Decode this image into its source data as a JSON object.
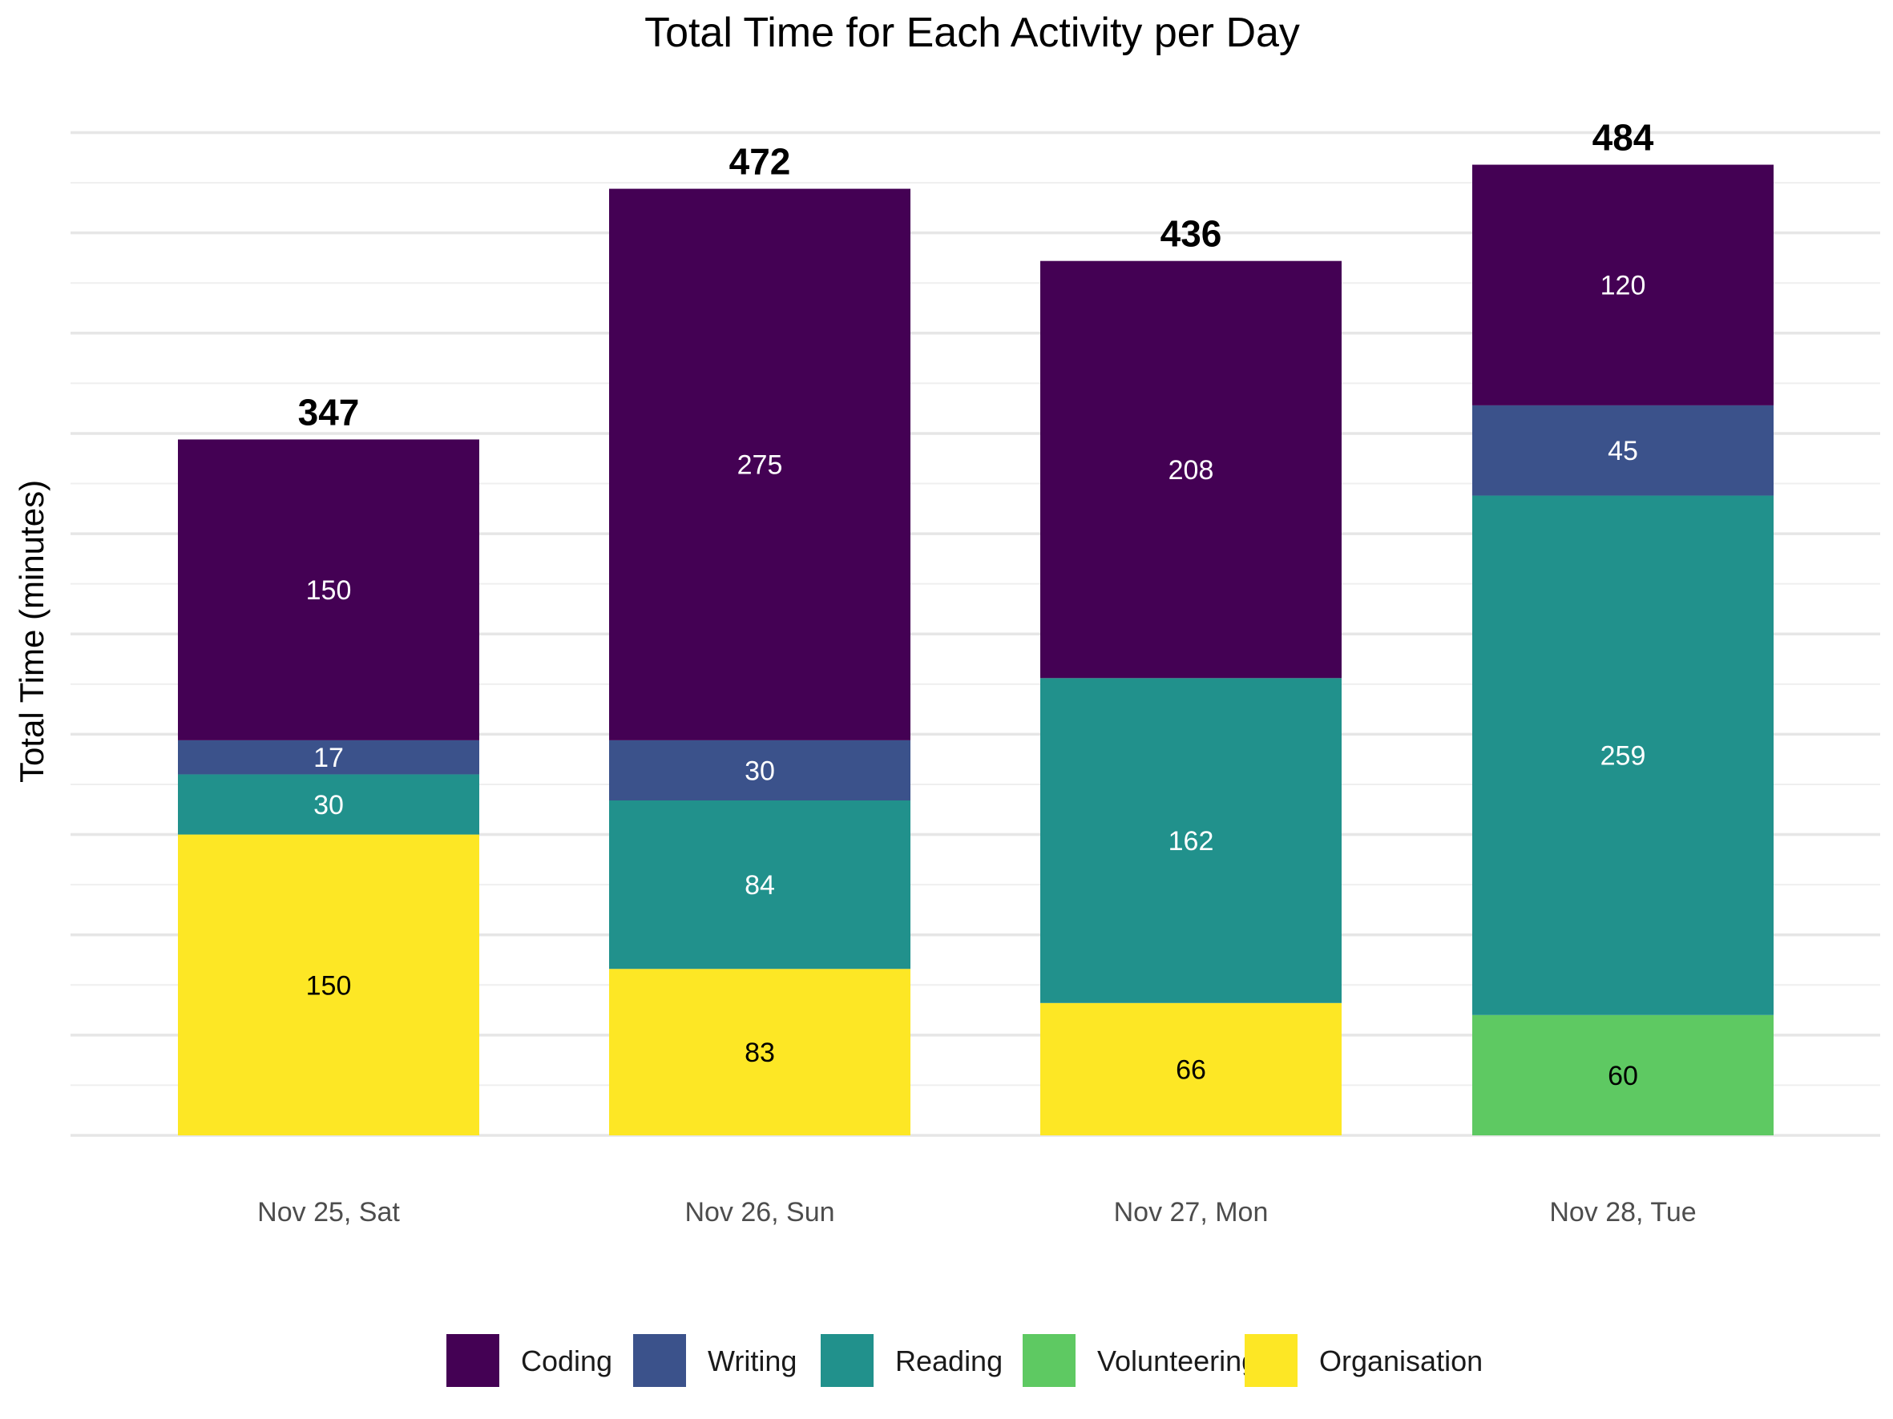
{
  "chart_data": {
    "type": "bar",
    "stacked": true,
    "title": "Total Time for Each Activity per Day",
    "xlabel": "",
    "ylabel": "Total Time (minutes)",
    "ylim": [
      0,
      500
    ],
    "grid": true,
    "legend_position": "bottom",
    "categories": [
      "Nov 25, Sat",
      "Nov 26, Sun",
      "Nov 27, Mon",
      "Nov 28, Tue"
    ],
    "series": [
      {
        "name": "Organisation",
        "color": "#FDE725",
        "label_color": "#000000",
        "values": [
          150,
          83,
          66,
          0
        ]
      },
      {
        "name": "Volunteering",
        "color": "#5EC962",
        "label_color": "#000000",
        "values": [
          0,
          0,
          0,
          60
        ]
      },
      {
        "name": "Reading",
        "color": "#21918C",
        "label_color": "#ffffff",
        "values": [
          30,
          84,
          162,
          259
        ]
      },
      {
        "name": "Writing",
        "color": "#3B528B",
        "label_color": "#ffffff",
        "values": [
          17,
          30,
          0,
          45
        ]
      },
      {
        "name": "Coding",
        "color": "#440154",
        "label_color": "#ffffff",
        "values": [
          150,
          275,
          208,
          120
        ]
      }
    ],
    "totals": [
      347,
      472,
      436,
      484
    ],
    "legend_order": [
      "Coding",
      "Writing",
      "Reading",
      "Volunteering",
      "Organisation"
    ]
  }
}
